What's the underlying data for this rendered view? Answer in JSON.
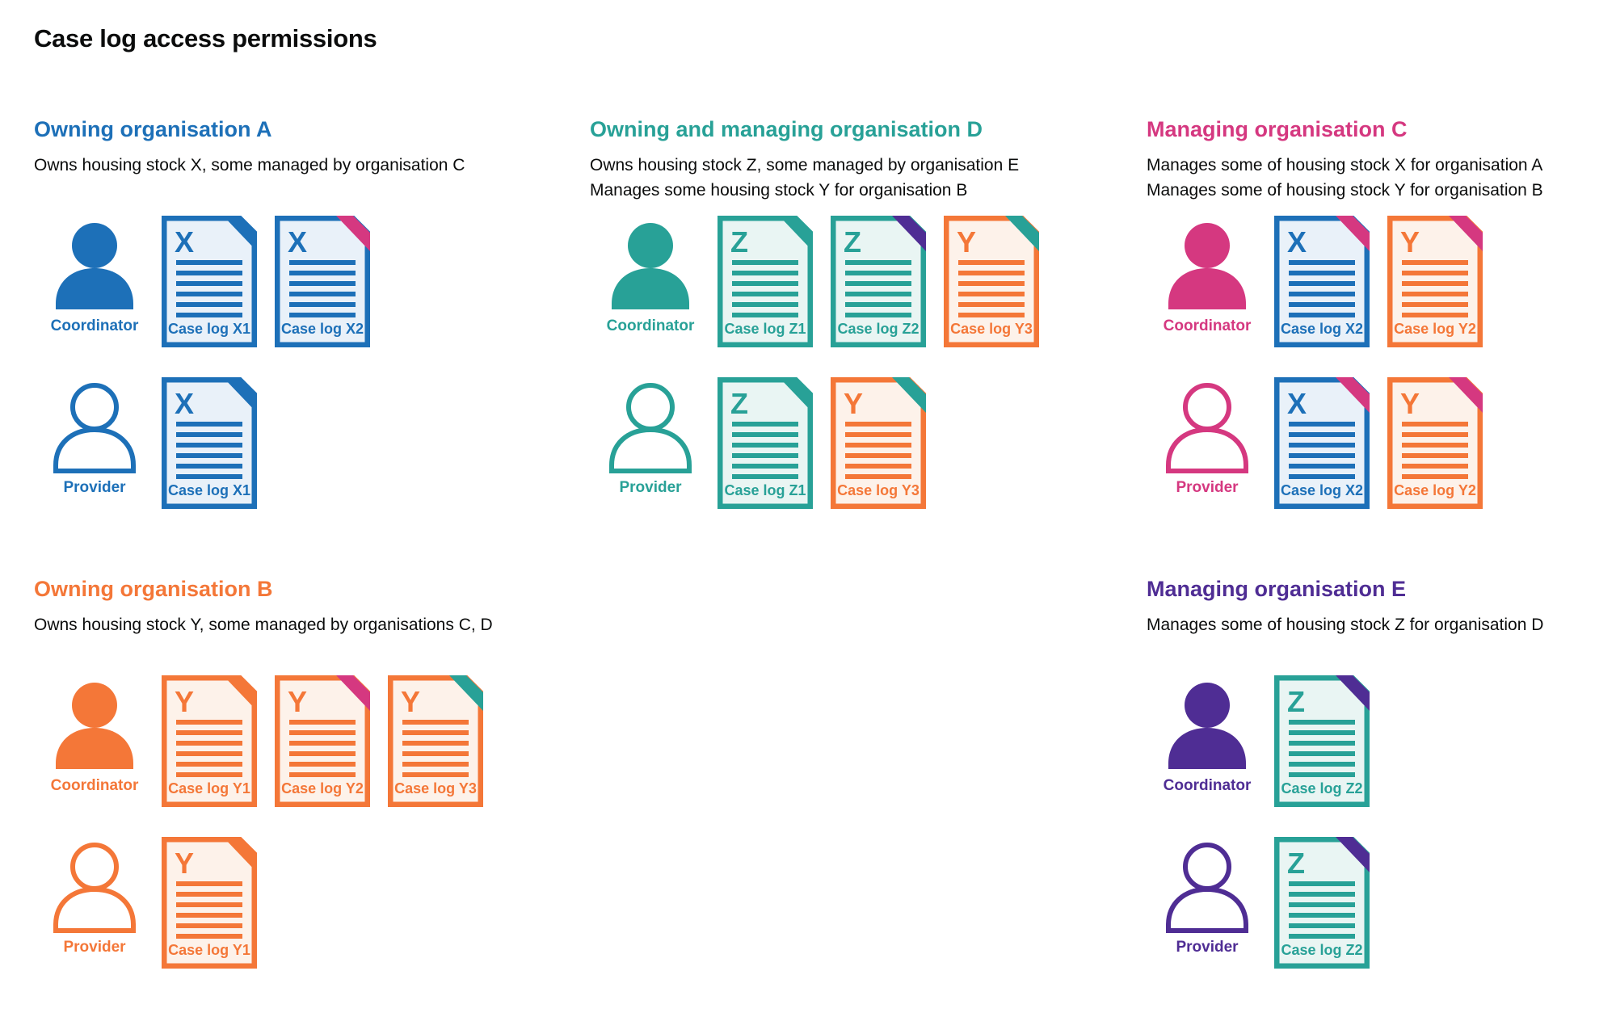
{
  "page": {
    "title": "Case log access permissions"
  },
  "colors": {
    "blue": "#1d70b8",
    "teal": "#28a197",
    "pink": "#d53880",
    "orange": "#f47738",
    "purple": "#4f2d94",
    "text": "#0b0c0c"
  },
  "tints": {
    "blue": "#e9f1f9",
    "teal": "#e9f5f3",
    "orange": "#fdf2ea"
  },
  "sections": [
    {
      "id": "owning-organisation-a",
      "heading": "Owning organisation A",
      "color": "blue",
      "col": 1,
      "row": 1,
      "description": [
        "Owns housing stock X, some managed by organisation C"
      ],
      "rows": [
        {
          "role": "Coordinator",
          "person_style": "filled",
          "docs": [
            {
              "letter": "X",
              "label": "Case log X1",
              "stock": "blue",
              "fold": "blue"
            },
            {
              "letter": "X",
              "label": "Case log X2",
              "stock": "blue",
              "fold": "pink"
            }
          ]
        },
        {
          "role": "Provider",
          "person_style": "outline",
          "docs": [
            {
              "letter": "X",
              "label": "Case log X1",
              "stock": "blue",
              "fold": "blue"
            }
          ]
        }
      ]
    },
    {
      "id": "owning-and-managing-organisation-d",
      "heading": "Owning and managing organisation D",
      "color": "teal",
      "col": 2,
      "row": 1,
      "description": [
        "Owns housing stock Z, some managed by organisation E",
        "Manages some housing stock Y for organisation B"
      ],
      "rows": [
        {
          "role": "Coordinator",
          "person_style": "filled",
          "docs": [
            {
              "letter": "Z",
              "label": "Case log Z1",
              "stock": "teal",
              "fold": "teal"
            },
            {
              "letter": "Z",
              "label": "Case log Z2",
              "stock": "teal",
              "fold": "purple"
            },
            {
              "letter": "Y",
              "label": "Case log Y3",
              "stock": "orange",
              "fold": "teal"
            }
          ]
        },
        {
          "role": "Provider",
          "person_style": "outline",
          "docs": [
            {
              "letter": "Z",
              "label": "Case log Z1",
              "stock": "teal",
              "fold": "teal"
            },
            {
              "letter": "Y",
              "label": "Case log Y3",
              "stock": "orange",
              "fold": "teal"
            }
          ]
        }
      ]
    },
    {
      "id": "managing-organisation-c",
      "heading": "Managing organisation C",
      "color": "pink",
      "col": 3,
      "row": 1,
      "description": [
        "Manages some of housing stock X for organisation A",
        "Manages some of housing stock Y for organisation B"
      ],
      "rows": [
        {
          "role": "Coordinator",
          "person_style": "filled",
          "docs": [
            {
              "letter": "X",
              "label": "Case log X2",
              "stock": "blue",
              "fold": "pink"
            },
            {
              "letter": "Y",
              "label": "Case log Y2",
              "stock": "orange",
              "fold": "pink"
            }
          ]
        },
        {
          "role": "Provider",
          "person_style": "outline",
          "docs": [
            {
              "letter": "X",
              "label": "Case log X2",
              "stock": "blue",
              "fold": "pink"
            },
            {
              "letter": "Y",
              "label": "Case log Y2",
              "stock": "orange",
              "fold": "pink"
            }
          ]
        }
      ]
    },
    {
      "id": "owning-organisation-b",
      "heading": "Owning organisation B",
      "color": "orange",
      "col": 1,
      "row": 2,
      "description": [
        "Owns housing stock Y, some managed by organisations C, D"
      ],
      "rows": [
        {
          "role": "Coordinator",
          "person_style": "filled",
          "docs": [
            {
              "letter": "Y",
              "label": "Case log Y1",
              "stock": "orange",
              "fold": "orange"
            },
            {
              "letter": "Y",
              "label": "Case log Y2",
              "stock": "orange",
              "fold": "pink"
            },
            {
              "letter": "Y",
              "label": "Case log Y3",
              "stock": "orange",
              "fold": "teal"
            }
          ]
        },
        {
          "role": "Provider",
          "person_style": "outline",
          "docs": [
            {
              "letter": "Y",
              "label": "Case log Y1",
              "stock": "orange",
              "fold": "orange"
            }
          ]
        }
      ]
    },
    {
      "id": "managing-organisation-e",
      "heading": "Managing organisation E",
      "color": "purple",
      "col": 3,
      "row": 2,
      "description": [
        "Manages some of housing stock Z for organisation D"
      ],
      "rows": [
        {
          "role": "Coordinator",
          "person_style": "filled",
          "docs": [
            {
              "letter": "Z",
              "label": "Case log Z2",
              "stock": "teal",
              "fold": "purple"
            }
          ]
        },
        {
          "role": "Provider",
          "person_style": "outline",
          "docs": [
            {
              "letter": "Z",
              "label": "Case log Z2",
              "stock": "teal",
              "fold": "purple"
            }
          ]
        }
      ]
    }
  ]
}
